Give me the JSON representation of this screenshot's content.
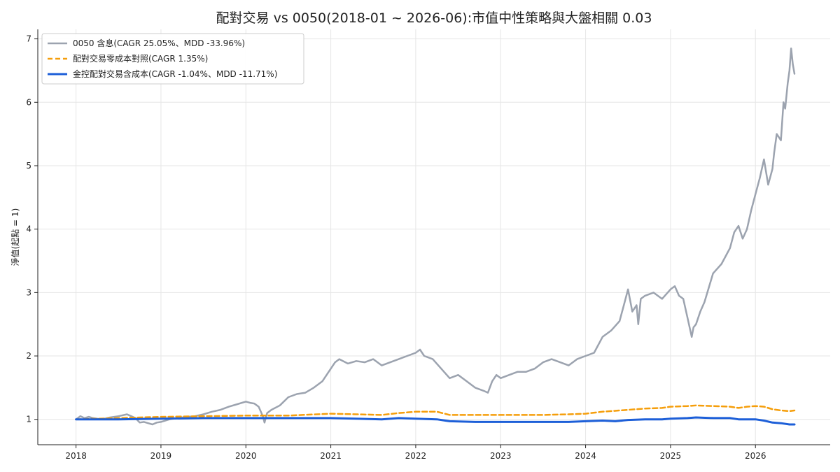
{
  "chart_data": {
    "type": "line",
    "title": "配對交易 vs 0050(2018-01 ~ 2026-06):市值中性策略與大盤相關 0.03",
    "ylabel": "淨值(起點 = 1)",
    "xlabel": "",
    "xlim": [
      2017.55,
      2026.88
    ],
    "ylim": [
      0.6,
      7.15
    ],
    "x_ticks": [
      {
        "value": 2018,
        "label": "2018"
      },
      {
        "value": 2019,
        "label": "2019"
      },
      {
        "value": 2020,
        "label": "2020"
      },
      {
        "value": 2021,
        "label": "2021"
      },
      {
        "value": 2022,
        "label": "2022"
      },
      {
        "value": 2023,
        "label": "2023"
      },
      {
        "value": 2024,
        "label": "2024"
      },
      {
        "value": 2025,
        "label": "2025"
      },
      {
        "value": 2026,
        "label": "2026"
      }
    ],
    "y_ticks": [
      {
        "value": 1,
        "label": "1"
      },
      {
        "value": 2,
        "label": "2"
      },
      {
        "value": 3,
        "label": "3"
      },
      {
        "value": 4,
        "label": "4"
      },
      {
        "value": 5,
        "label": "5"
      },
      {
        "value": 6,
        "label": "6"
      },
      {
        "value": 7,
        "label": "7"
      }
    ],
    "grid": true,
    "legend_position": "top-left",
    "series": [
      {
        "name": "0050 含息(CAGR 25.05%、MDD -33.96%)",
        "color": "#9ca3af",
        "style": "solid",
        "x": [
          2018.0,
          2018.05,
          2018.1,
          2018.15,
          2018.2,
          2018.3,
          2018.4,
          2018.5,
          2018.6,
          2018.65,
          2018.7,
          2018.75,
          2018.8,
          2018.85,
          2018.9,
          2018.95,
          2019.0,
          2019.1,
          2019.2,
          2019.3,
          2019.4,
          2019.5,
          2019.6,
          2019.7,
          2019.8,
          2019.9,
          2020.0,
          2020.05,
          2020.1,
          2020.15,
          2020.2,
          2020.22,
          2020.25,
          2020.3,
          2020.4,
          2020.5,
          2020.6,
          2020.7,
          2020.8,
          2020.9,
          2021.0,
          2021.05,
          2021.1,
          2021.2,
          2021.3,
          2021.4,
          2021.5,
          2021.6,
          2021.7,
          2021.8,
          2021.9,
          2022.0,
          2022.05,
          2022.1,
          2022.2,
          2022.3,
          2022.4,
          2022.5,
          2022.6,
          2022.7,
          2022.8,
          2022.85,
          2022.9,
          2022.95,
          2023.0,
          2023.1,
          2023.2,
          2023.3,
          2023.4,
          2023.5,
          2023.6,
          2023.7,
          2023.8,
          2023.9,
          2024.0,
          2024.1,
          2024.2,
          2024.3,
          2024.4,
          2024.45,
          2024.5,
          2024.55,
          2024.6,
          2024.62,
          2024.65,
          2024.7,
          2024.8,
          2024.9,
          2025.0,
          2025.05,
          2025.1,
          2025.15,
          2025.2,
          2025.25,
          2025.27,
          2025.3,
          2025.35,
          2025.4,
          2025.5,
          2025.6,
          2025.7,
          2025.75,
          2025.8,
          2025.85,
          2025.9,
          2025.95,
          2026.0,
          2026.05,
          2026.1,
          2026.15,
          2026.2,
          2026.22,
          2026.25,
          2026.3,
          2026.33,
          2026.35,
          2026.38,
          2026.4,
          2026.42,
          2026.44,
          2026.46
        ],
        "values": [
          1.0,
          1.05,
          1.02,
          1.04,
          1.02,
          1.0,
          1.03,
          1.05,
          1.08,
          1.05,
          1.02,
          0.95,
          0.96,
          0.94,
          0.92,
          0.95,
          0.96,
          1.0,
          1.02,
          1.04,
          1.05,
          1.08,
          1.12,
          1.15,
          1.2,
          1.24,
          1.28,
          1.26,
          1.25,
          1.2,
          1.05,
          0.95,
          1.1,
          1.15,
          1.22,
          1.35,
          1.4,
          1.42,
          1.5,
          1.6,
          1.8,
          1.9,
          1.95,
          1.88,
          1.92,
          1.9,
          1.95,
          1.85,
          1.9,
          1.95,
          2.0,
          2.05,
          2.1,
          2.0,
          1.95,
          1.8,
          1.65,
          1.7,
          1.6,
          1.5,
          1.45,
          1.42,
          1.6,
          1.7,
          1.65,
          1.7,
          1.75,
          1.75,
          1.8,
          1.9,
          1.95,
          1.9,
          1.85,
          1.95,
          2.0,
          2.05,
          2.3,
          2.4,
          2.55,
          2.8,
          3.05,
          2.7,
          2.8,
          2.5,
          2.9,
          2.95,
          3.0,
          2.9,
          3.05,
          3.1,
          2.95,
          2.9,
          2.6,
          2.3,
          2.45,
          2.5,
          2.7,
          2.85,
          3.3,
          3.45,
          3.7,
          3.95,
          4.05,
          3.85,
          4.0,
          4.3,
          4.55,
          4.8,
          5.1,
          4.7,
          4.95,
          5.2,
          5.5,
          5.4,
          6.0,
          5.9,
          6.3,
          6.5,
          6.85,
          6.6,
          6.45
        ]
      },
      {
        "name": "配對交易零成本對照(CAGR 1.35%)",
        "color": "#f59e0b",
        "style": "dashed",
        "x": [
          2018.0,
          2018.5,
          2019.0,
          2019.5,
          2020.0,
          2020.5,
          2021.0,
          2021.3,
          2021.6,
          2021.8,
          2022.0,
          2022.25,
          2022.4,
          2022.7,
          2023.0,
          2023.5,
          2023.8,
          2024.0,
          2024.2,
          2024.5,
          2024.7,
          2024.9,
          2025.0,
          2025.2,
          2025.3,
          2025.5,
          2025.7,
          2025.8,
          2025.9,
          2026.0,
          2026.1,
          2026.2,
          2026.3,
          2026.4,
          2026.46
        ],
        "values": [
          1.0,
          1.02,
          1.04,
          1.05,
          1.06,
          1.06,
          1.09,
          1.08,
          1.07,
          1.1,
          1.12,
          1.12,
          1.07,
          1.07,
          1.07,
          1.07,
          1.08,
          1.09,
          1.12,
          1.15,
          1.17,
          1.18,
          1.2,
          1.21,
          1.22,
          1.21,
          1.2,
          1.18,
          1.2,
          1.21,
          1.2,
          1.16,
          1.14,
          1.13,
          1.14
        ]
      },
      {
        "name": "金控配對交易含成本(CAGR -1.04%、MDD -11.71%)",
        "color": "#1d5fd8",
        "style": "solid",
        "x": [
          2018.0,
          2018.5,
          2019.0,
          2019.5,
          2020.0,
          2020.5,
          2021.0,
          2021.3,
          2021.6,
          2021.8,
          2022.0,
          2022.25,
          2022.4,
          2022.7,
          2023.0,
          2023.5,
          2023.8,
          2024.0,
          2024.2,
          2024.35,
          2024.5,
          2024.7,
          2024.9,
          2025.0,
          2025.2,
          2025.3,
          2025.5,
          2025.7,
          2025.8,
          2025.9,
          2026.0,
          2026.1,
          2026.2,
          2026.3,
          2026.4,
          2026.46
        ],
        "values": [
          1.0,
          1.0,
          1.01,
          1.02,
          1.02,
          1.02,
          1.02,
          1.01,
          1.0,
          1.02,
          1.01,
          1.0,
          0.97,
          0.96,
          0.96,
          0.96,
          0.96,
          0.97,
          0.98,
          0.97,
          0.99,
          1.0,
          1.0,
          1.01,
          1.02,
          1.03,
          1.02,
          1.02,
          1.0,
          1.0,
          1.0,
          0.98,
          0.95,
          0.94,
          0.92,
          0.92
        ]
      }
    ]
  }
}
